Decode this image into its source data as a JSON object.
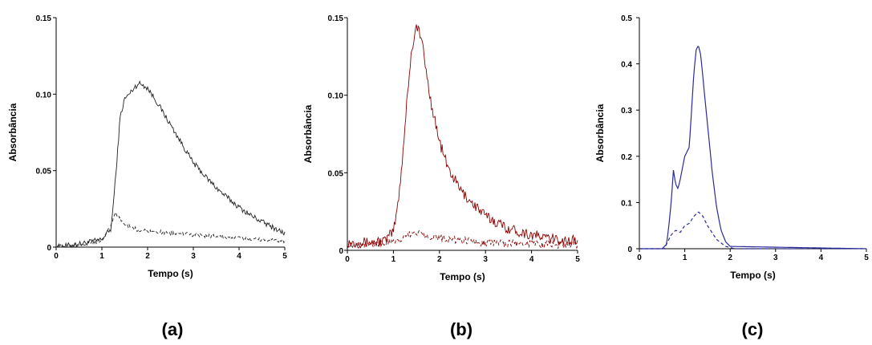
{
  "chart_data": [
    {
      "type": "line",
      "panel_label": "(a)",
      "xlabel": "Tempo (s)",
      "ylabel": "Absorbância",
      "xlim": [
        0,
        5
      ],
      "ylim": [
        0,
        0.15
      ],
      "xticks": [
        "0",
        "1",
        "2",
        "3",
        "4",
        "5"
      ],
      "yticks": [
        "0",
        "0.05",
        "0.10",
        "0.15"
      ],
      "grid": false,
      "color": "#222222",
      "noise": 0.0018,
      "series": [
        {
          "style": "solid",
          "x": [
            0,
            0.5,
            1.0,
            1.2,
            1.3,
            1.4,
            1.5,
            1.6,
            1.7,
            1.8,
            1.9,
            2.0,
            2.2,
            2.5,
            2.8,
            3.0,
            3.3,
            3.6,
            4.0,
            4.3,
            4.6,
            5.0
          ],
          "y": [
            0.0,
            0.002,
            0.005,
            0.012,
            0.045,
            0.085,
            0.097,
            0.1,
            0.104,
            0.107,
            0.106,
            0.104,
            0.095,
            0.08,
            0.065,
            0.055,
            0.045,
            0.036,
            0.026,
            0.02,
            0.015,
            0.009
          ]
        },
        {
          "style": "dashed",
          "x": [
            0,
            1.0,
            1.2,
            1.3,
            1.5,
            1.8,
            2.2,
            3.0,
            4.0,
            5.0
          ],
          "y": [
            0.0,
            0.004,
            0.015,
            0.022,
            0.015,
            0.011,
            0.01,
            0.008,
            0.006,
            0.004
          ]
        }
      ]
    },
    {
      "type": "line",
      "panel_label": "(b)",
      "xlabel": "Tempo (s)",
      "ylabel": "Absorbância",
      "xlim": [
        0,
        5
      ],
      "ylim": [
        0,
        0.15
      ],
      "xticks": [
        "0",
        "1",
        "2",
        "3",
        "4",
        "5"
      ],
      "yticks": [
        "0",
        "0.05",
        "0.10",
        "0.15"
      ],
      "grid": false,
      "color": "#8b0000",
      "noise": 0.0035,
      "series": [
        {
          "style": "solid",
          "x": [
            0,
            0.5,
            0.8,
            1.0,
            1.1,
            1.2,
            1.3,
            1.4,
            1.5,
            1.6,
            1.7,
            1.8,
            2.0,
            2.2,
            2.5,
            3.0,
            3.5,
            4.0,
            4.5,
            5.0
          ],
          "y": [
            0.005,
            0.005,
            0.006,
            0.012,
            0.03,
            0.06,
            0.1,
            0.13,
            0.145,
            0.138,
            0.118,
            0.098,
            0.07,
            0.052,
            0.037,
            0.022,
            0.014,
            0.01,
            0.007,
            0.006
          ]
        },
        {
          "style": "dashed",
          "x": [
            0,
            1.0,
            1.2,
            1.5,
            1.8,
            2.2,
            3.0,
            4.0,
            5.0
          ],
          "y": [
            0.004,
            0.005,
            0.008,
            0.012,
            0.009,
            0.007,
            0.005,
            0.004,
            0.003
          ]
        }
      ]
    },
    {
      "type": "line",
      "panel_label": "(c)",
      "xlabel": "Tempo (s)",
      "ylabel": "Absorbância",
      "xlim": [
        0,
        5
      ],
      "ylim": [
        0,
        0.5
      ],
      "xticks": [
        "0",
        "1",
        "2",
        "3",
        "4",
        "5"
      ],
      "yticks": [
        "0",
        "0.1",
        "0.2",
        "0.3",
        "0.4",
        "0.5"
      ],
      "grid": false,
      "color": "#2b2b9b",
      "noise": 0.0,
      "series": [
        {
          "style": "solid",
          "x": [
            0,
            0.5,
            0.6,
            0.65,
            0.7,
            0.75,
            0.8,
            0.85,
            0.9,
            1.0,
            1.1,
            1.15,
            1.2,
            1.25,
            1.3,
            1.35,
            1.4,
            1.5,
            1.6,
            1.7,
            1.8,
            1.9,
            2.0,
            5.0
          ],
          "y": [
            0,
            0.0,
            0.01,
            0.05,
            0.1,
            0.17,
            0.14,
            0.13,
            0.15,
            0.2,
            0.22,
            0.3,
            0.38,
            0.43,
            0.44,
            0.42,
            0.37,
            0.27,
            0.17,
            0.09,
            0.04,
            0.015,
            0.005,
            0.0
          ]
        },
        {
          "style": "dashed",
          "x": [
            0,
            0.55,
            0.7,
            0.8,
            0.9,
            1.0,
            1.1,
            1.2,
            1.3,
            1.4,
            1.5,
            1.7,
            1.9,
            2.1,
            5.0
          ],
          "y": [
            0,
            0.0,
            0.03,
            0.04,
            0.035,
            0.05,
            0.055,
            0.07,
            0.08,
            0.07,
            0.05,
            0.02,
            0.005,
            0.0,
            0.0
          ]
        }
      ]
    }
  ]
}
